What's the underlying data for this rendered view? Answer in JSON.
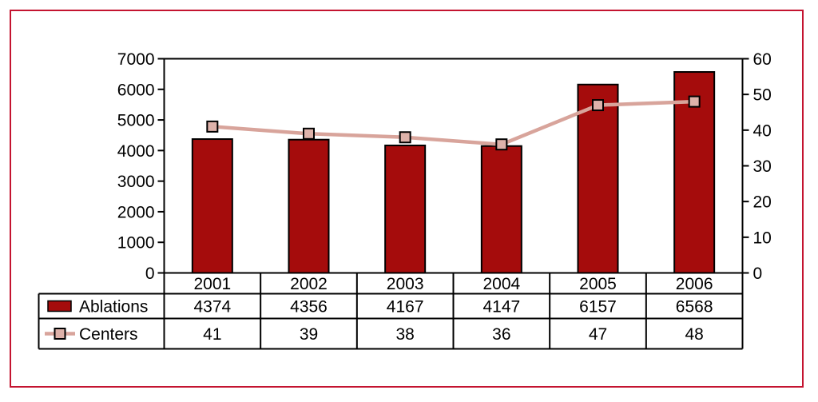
{
  "figure": {
    "frame_color": "#c41430",
    "background": "#ffffff",
    "title": ""
  },
  "chart_data": {
    "type": "bar",
    "subtype": "bar-line-combo",
    "title": "",
    "xlabel": "",
    "ylabel_left": "",
    "ylabel_right": "",
    "grid": false,
    "legend_position": "table-left",
    "data_table_shown": true,
    "categories": [
      "2001",
      "2002",
      "2003",
      "2004",
      "2005",
      "2006"
    ],
    "series": [
      {
        "name": "Ablations",
        "type": "bar",
        "axis": "left",
        "color": "#a50c0c",
        "border_color": "#000000",
        "values": [
          4374,
          4356,
          4167,
          4147,
          6157,
          6568
        ]
      },
      {
        "name": "Centers",
        "type": "line",
        "axis": "right",
        "color": "#d8a49b",
        "marker": "square",
        "marker_fill": "#deb2aa",
        "marker_border": "#000000",
        "values": [
          41,
          39,
          38,
          36,
          47,
          48
        ]
      }
    ],
    "left_axis": {
      "min": 0,
      "max": 7000,
      "step": 1000,
      "tick_labels": [
        "0",
        "1000",
        "2000",
        "3000",
        "4000",
        "5000",
        "6000",
        "7000"
      ]
    },
    "right_axis": {
      "min": 0,
      "max": 60,
      "step": 10,
      "tick_labels": [
        "0",
        "10",
        "20",
        "30",
        "40",
        "50",
        "60"
      ]
    }
  }
}
